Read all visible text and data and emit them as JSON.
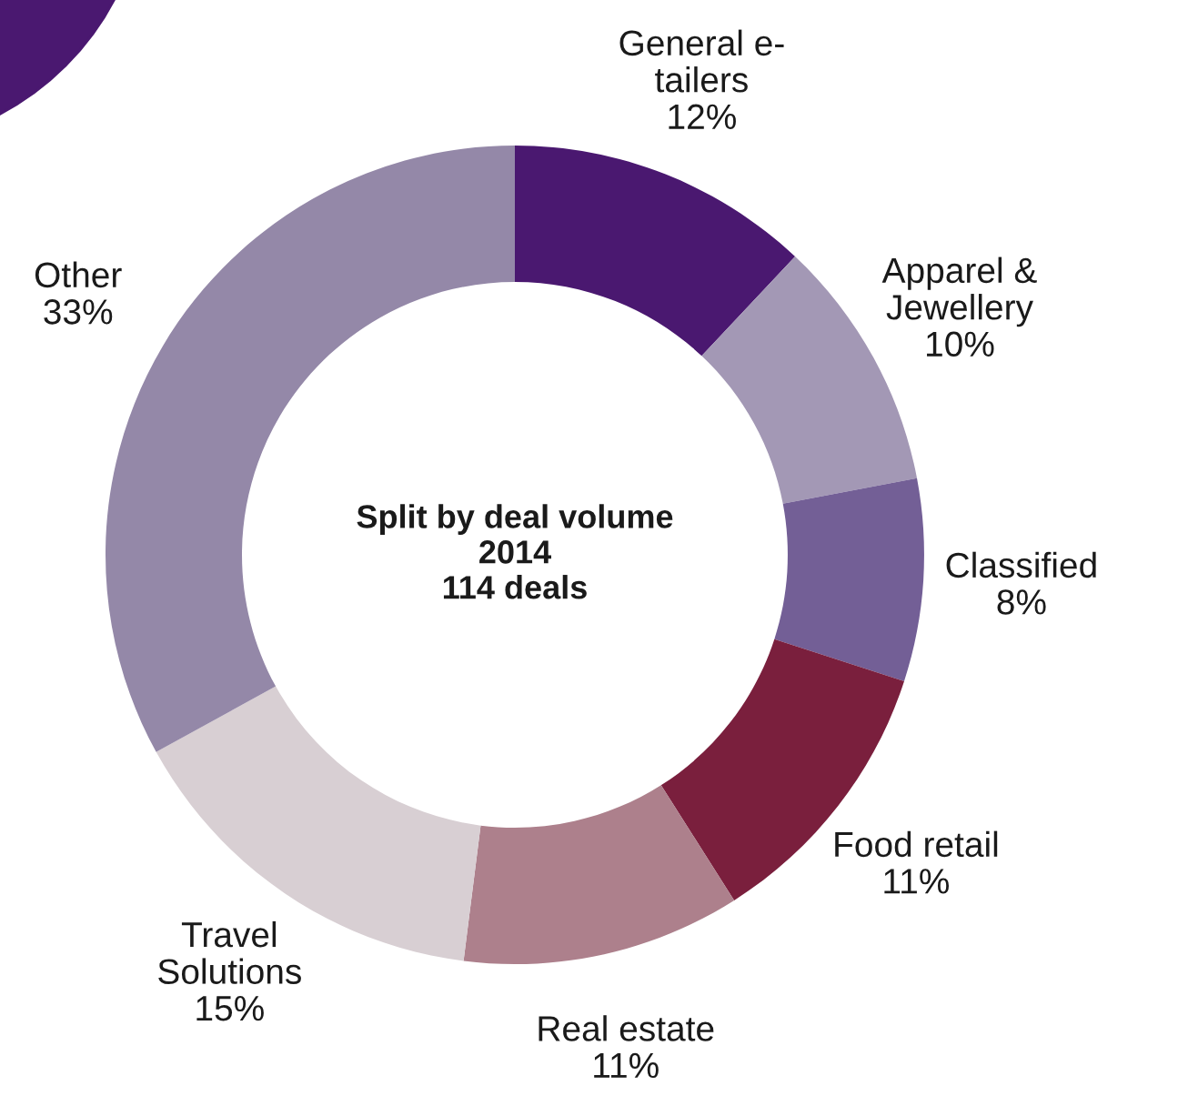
{
  "chart_data": {
    "type": "donut",
    "title": "Split by deal volume",
    "subtitle": "2014",
    "annotations": [
      "114 deals"
    ],
    "categories": [
      "General e-\ntailers",
      "Apparel &\nJewellery",
      "Classified",
      "Food retail",
      "Real estate",
      "Travel\nSolutions",
      "Other"
    ],
    "values": [
      12,
      10,
      8,
      11,
      11,
      15,
      33
    ],
    "value_labels": [
      "12%",
      "10%",
      "8%",
      "11%",
      "11%",
      "15%",
      "33%"
    ],
    "colors": [
      "#4a1870",
      "#a398b5",
      "#735f96",
      "#7a1f3d",
      "#ad808c",
      "#d8cfd3",
      "#9488a8"
    ],
    "legend": false
  }
}
